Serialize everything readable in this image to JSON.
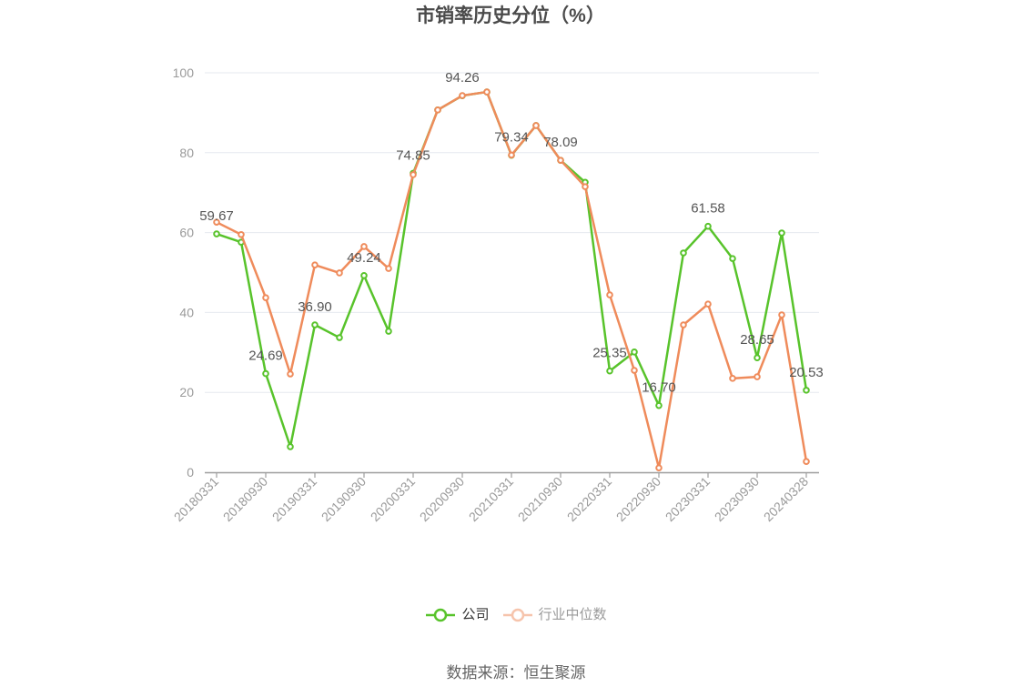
{
  "chart_data": {
    "type": "line",
    "title": "市销率历史分位（%）",
    "categories": [
      "20180331",
      "",
      "20180930",
      "",
      "20190331",
      "",
      "20190930",
      "",
      "20200331",
      "",
      "20200930",
      "",
      "20210331",
      "",
      "20210930",
      "",
      "20220331",
      "",
      "20220930",
      "",
      "20230331",
      "",
      "20230930",
      "",
      "20240328"
    ],
    "yticks": [
      0,
      20,
      40,
      60,
      80,
      100
    ],
    "ylim": [
      0,
      100
    ],
    "grid": true,
    "legend_position": "bottom",
    "series": [
      {
        "name": "公司",
        "color": "#58c32b",
        "values": [
          59.67,
          57.6,
          24.69,
          6.4,
          36.9,
          33.7,
          49.24,
          35.3,
          74.85,
          90.7,
          94.26,
          95.2,
          79.34,
          86.8,
          78.09,
          72.6,
          25.35,
          30.1,
          16.7,
          54.9,
          61.58,
          53.5,
          28.65,
          59.9,
          20.53
        ],
        "labels": [
          "59.67",
          null,
          "24.69",
          null,
          "36.90",
          null,
          "49.24",
          null,
          "74.85",
          null,
          "94.26",
          null,
          "79.34",
          null,
          "78.09",
          null,
          "25.35",
          null,
          "16.70",
          null,
          "61.58",
          null,
          "28.65",
          null,
          "20.53"
        ]
      },
      {
        "name": "行业中位数",
        "color": "#ef8b5b",
        "values": [
          62.6,
          59.5,
          43.7,
          24.6,
          51.9,
          49.9,
          56.5,
          51.0,
          74.5,
          90.7,
          94.3,
          95.2,
          79.4,
          86.8,
          78.1,
          71.5,
          44.4,
          25.5,
          1.1,
          36.9,
          42.1,
          23.5,
          23.9,
          39.4,
          2.7
        ]
      }
    ]
  },
  "source": "数据来源：恒生聚源"
}
